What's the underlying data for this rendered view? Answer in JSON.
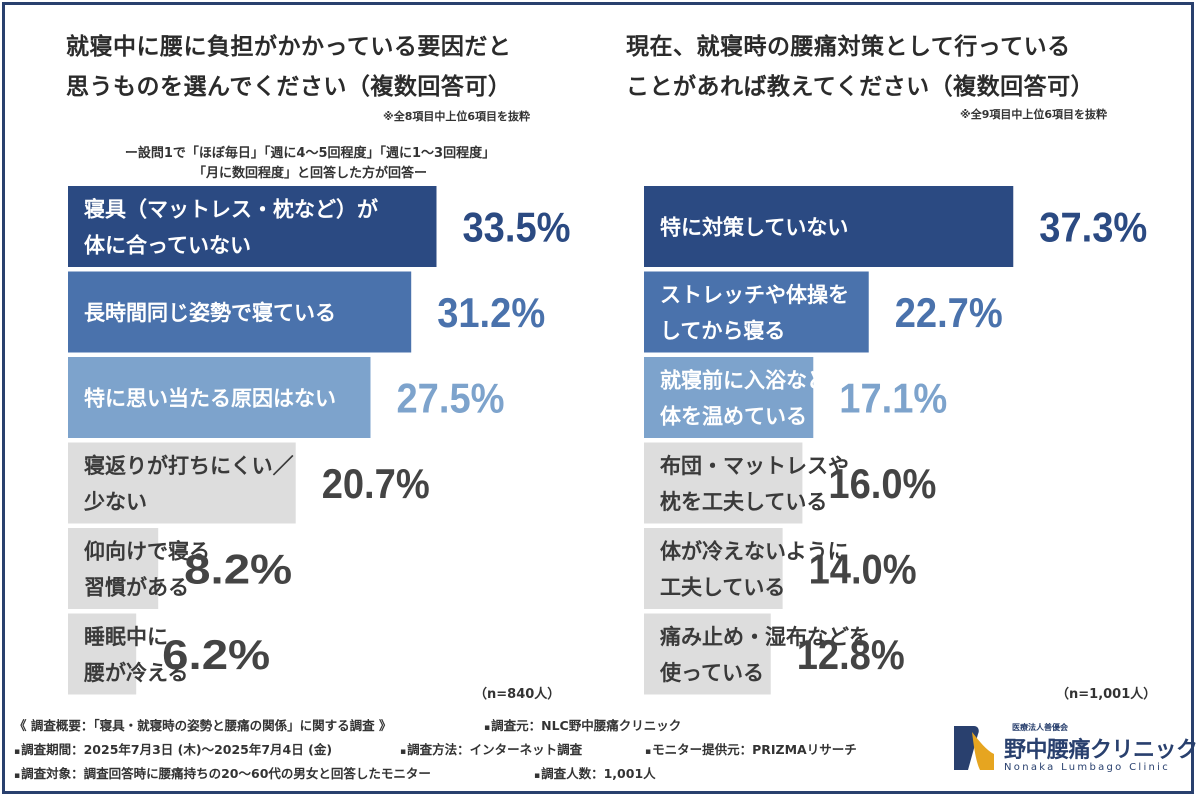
{
  "chart_data": [
    {
      "type": "bar",
      "title": [
        "就寝中に腰に負担がかかっている要因だと",
        "思うものを選んでください（複数回答可）"
      ],
      "note": "※全8項目中上位6項目を抜粋",
      "condition": [
        "ー設問1で「ほぼ毎日」「週に4〜5回程度」「週に1〜3回程度」",
        "「月に数回程度」と回答した方が回答ー"
      ],
      "categories": [
        [
          "寝具（マットレス・枕など）が",
          "体に合っていない"
        ],
        [
          "長時間同じ姿勢で寝ている"
        ],
        [
          "特に思い当たる原因はない"
        ],
        [
          "寝返りが打ちにくい／",
          "少ない"
        ],
        [
          "仰向けで寝る",
          "習慣がある"
        ],
        [
          "睡眠中に",
          "腰が冷える"
        ]
      ],
      "values": [
        33.5,
        31.2,
        27.5,
        20.7,
        8.2,
        6.2
      ],
      "value_labels": [
        "33.5%",
        "31.2%",
        "27.5%",
        "20.7%",
        "8.2%",
        "6.2%"
      ],
      "bar_colors": [
        "#2b4a82",
        "#4a72ac",
        "#7da3cc",
        "#dddddd",
        "#dddddd",
        "#dddddd"
      ],
      "label_colors": [
        "#ffffff",
        "#ffffff",
        "#ffffff",
        "#3a3a3a",
        "#3a3a3a",
        "#3a3a3a"
      ],
      "value_colors": [
        "#2b4a82",
        "#4a72ac",
        "#7da3cc",
        "#444444",
        "#444444",
        "#444444"
      ],
      "n": "（n=840人）"
    },
    {
      "type": "bar",
      "title": [
        "現在、就寝時の腰痛対策として行っている",
        "ことがあれば教えてください（複数回答可）"
      ],
      "note": "※全9項目中上位6項目を抜粋",
      "categories": [
        [
          "特に対策していない"
        ],
        [
          "ストレッチや体操を",
          "してから寝る"
        ],
        [
          "就寝前に入浴などで",
          "体を温めている"
        ],
        [
          "布団・マットレスや",
          "枕を工夫している"
        ],
        [
          "体が冷えないように",
          "工夫している"
        ],
        [
          "痛み止め・湿布などを",
          "使っている"
        ]
      ],
      "values": [
        37.3,
        22.7,
        17.1,
        16.0,
        14.0,
        12.8
      ],
      "value_labels": [
        "37.3%",
        "22.7%",
        "17.1%",
        "16.0%",
        "14.0%",
        "12.8%"
      ],
      "bar_colors": [
        "#2b4a82",
        "#4a72ac",
        "#7da3cc",
        "#dddddd",
        "#dddddd",
        "#dddddd"
      ],
      "label_colors": [
        "#ffffff",
        "#ffffff",
        "#ffffff",
        "#3a3a3a",
        "#3a3a3a",
        "#3a3a3a"
      ],
      "value_colors": [
        "#2b4a82",
        "#4a72ac",
        "#7da3cc",
        "#444444",
        "#444444",
        "#444444"
      ],
      "n": "（n=1,001人）"
    }
  ],
  "footer": {
    "survey": "《 調査概要：「寝具・就寝時の姿勢と腰痛の関係」に関する調査 》",
    "source": "調査元：NLC野中腰痛クリニック",
    "period": "調査期間：2025年7月3日 (木)〜2025年7月4日 (金)",
    "method": "調査方法：インターネット調査",
    "provider": "モニター提供元：PRIZMAリサーチ",
    "target": "調査対象：調査回答時に腰痛持ちの20〜60代の男女と回答したモニター",
    "count": "調査人数：1,001人",
    "bullet": "▪"
  },
  "logo": {
    "sub": "医療法人善優会",
    "name": "野中腰痛クリニック",
    "en": "Nonaka Lumbago Clinic",
    "colors": {
      "navy": "#29406e",
      "gold": "#e6a520",
      "teal": "#4aa3c8"
    }
  },
  "frame_color": "#29406e"
}
